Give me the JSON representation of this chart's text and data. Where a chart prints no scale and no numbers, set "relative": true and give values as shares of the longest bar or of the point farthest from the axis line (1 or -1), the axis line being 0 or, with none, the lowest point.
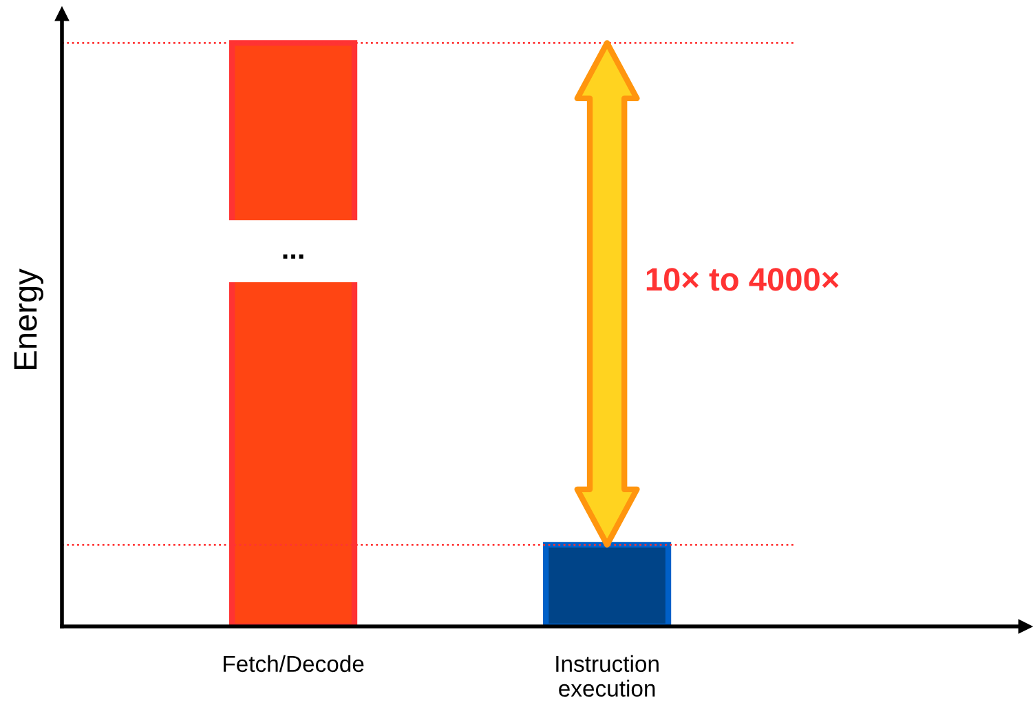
{
  "chart_data": {
    "type": "bar",
    "relative": true,
    "ylabel": "Energy",
    "categories": [
      "Fetch/Decode",
      "Instruction\nexecution"
    ],
    "values": [
      1,
      0.14
    ],
    "colors": [
      "#ff4513",
      "#004488"
    ],
    "ref_lines": [
      {
        "axis": "y",
        "value": 1,
        "color": "#ff3333",
        "line_style": "dotted"
      },
      {
        "axis": "y",
        "value": 0.14,
        "color": "#ff3333",
        "line_style": "dotted"
      }
    ],
    "annotations": [
      "10× to 4000×",
      "..."
    ]
  }
}
